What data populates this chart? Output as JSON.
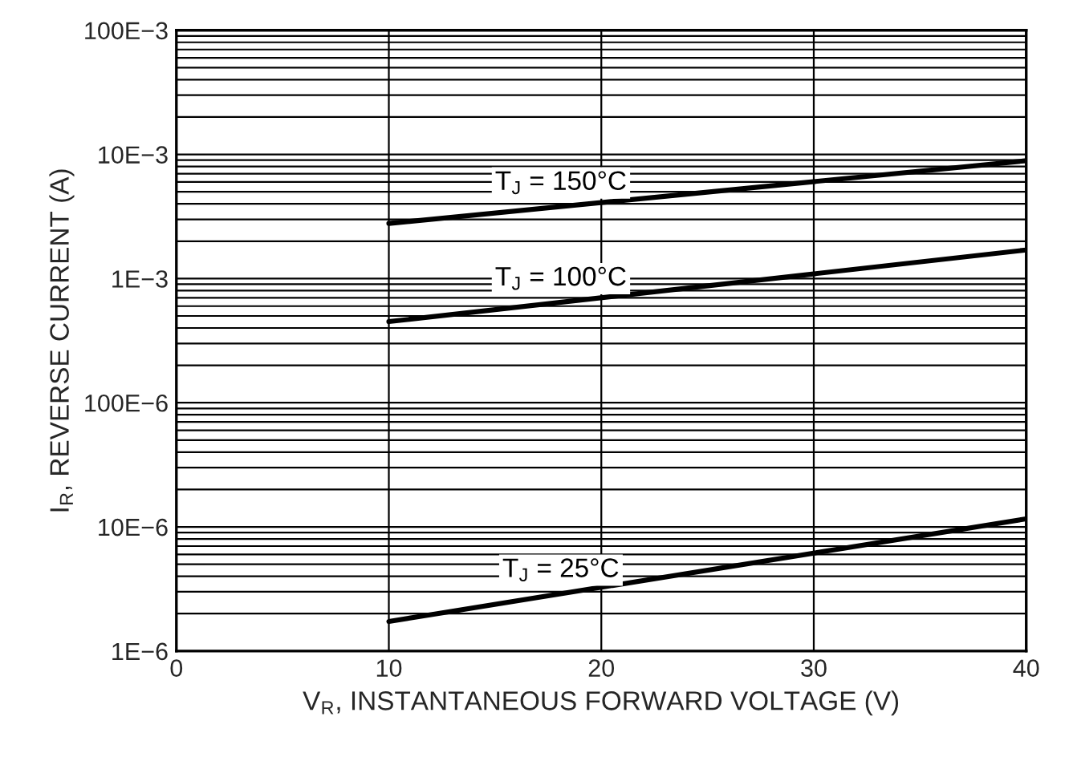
{
  "chart_data": {
    "type": "line",
    "xlabel": "V$_{R}$, INSTANTANEOUS FORWARD VOLTAGE (V)",
    "ylabel": "I$_{R}$, REVERSE CURRENT (A)",
    "x": [
      10,
      40
    ],
    "series": [
      {
        "name": "T$_{J}$ = 150°C",
        "color": "#000000",
        "values": [
          0.00278,
          0.0089
        ]
      },
      {
        "name": "T$_{J}$ = 100°C",
        "color": "#000000",
        "values": [
          0.00045,
          0.0017
        ]
      },
      {
        "name": "T$_{J}$ = 25°C",
        "color": "#000000",
        "values": [
          1.73e-06,
          1.16e-05
        ]
      }
    ],
    "log": "y",
    "xlim": [
      0,
      40
    ],
    "ylim": [
      1e-06,
      0.1
    ],
    "xticks": [
      0,
      10,
      20,
      30,
      40
    ],
    "yticks": [
      {
        "value": 1e-06,
        "label": "1E−6"
      },
      {
        "value": 1e-05,
        "label": "10E−6"
      },
      {
        "value": 0.0001,
        "label": "100E−6"
      },
      {
        "value": 0.001,
        "label": "1E−3"
      },
      {
        "value": 0.01,
        "label": "10E−3"
      },
      {
        "value": 0.1,
        "label": "100E−3"
      }
    ],
    "grid": true,
    "marker": "none",
    "line_style": "solid"
  }
}
